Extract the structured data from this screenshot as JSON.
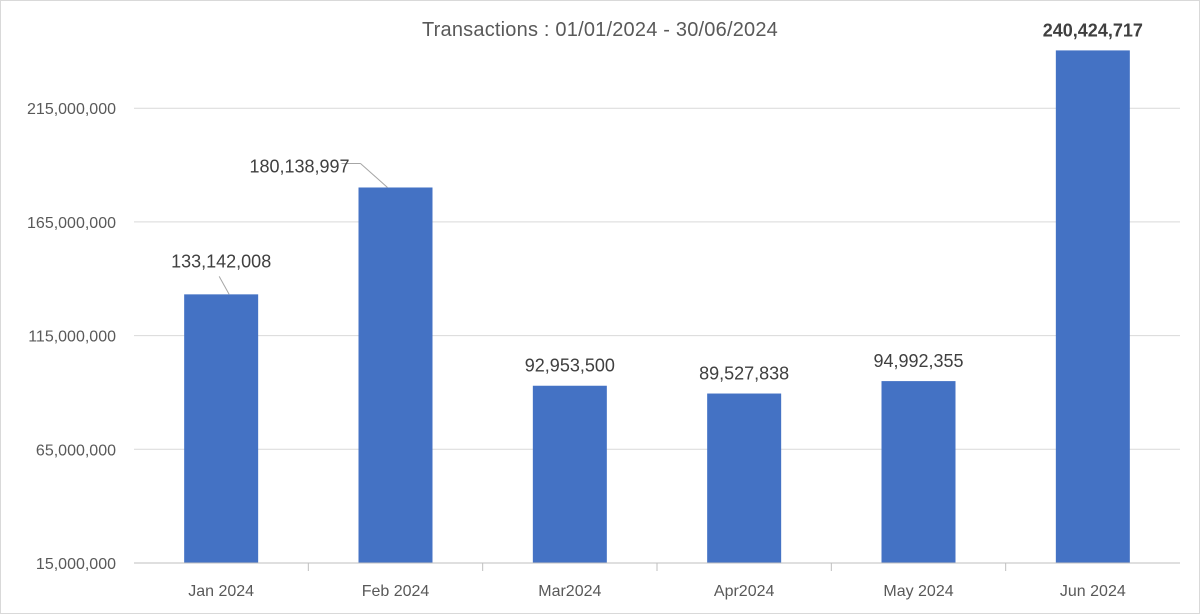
{
  "chart_data": {
    "type": "bar",
    "title": "Transactions : 01/01/2024 - 30/06/2024",
    "xlabel": "",
    "ylabel": "",
    "categories": [
      "Jan 2024",
      "Feb 2024",
      "Mar2024",
      "Apr2024",
      "May 2024",
      "Jun 2024"
    ],
    "values": [
      133142008,
      180138997,
      92953500,
      89527838,
      94992355,
      240424717
    ],
    "data_labels": [
      "133,142,008",
      "180,138,997",
      "92,953,500",
      "89,527,838",
      "94,992,355",
      "240,424,717"
    ],
    "highlight_label_index": 5,
    "yticks": [
      15000000,
      65000000,
      115000000,
      165000000,
      215000000
    ],
    "ytick_labels": [
      "15,000,000",
      "65,000,000",
      "115,000,000",
      "165,000,000",
      "215,000,000"
    ],
    "ylim": [
      15000000,
      245000000
    ],
    "grid": true,
    "legend": "none",
    "colors": {
      "bar": "#4472c4",
      "grid": "#d9d9d9",
      "axis": "#bfbfbf",
      "text": "#595959"
    }
  }
}
